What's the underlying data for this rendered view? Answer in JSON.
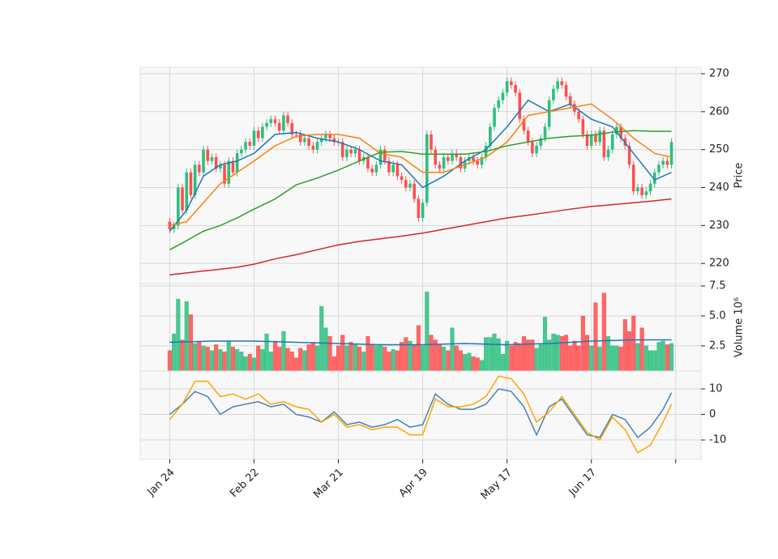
{
  "chart_data": [
    {
      "type": "candlestick",
      "ylabel": "Price",
      "xlim": [
        -7,
        126
      ],
      "ylim": [
        214.7,
        271.7
      ],
      "yticks": [
        220,
        230,
        240,
        250,
        260,
        270
      ],
      "grid": true,
      "xticks": [
        {
          "value": 0,
          "label": "Jan 24"
        },
        {
          "value": 20,
          "label": "Feb 22"
        },
        {
          "value": 40,
          "label": "Mar 21"
        },
        {
          "value": 60,
          "label": "Apr 19"
        },
        {
          "value": 80,
          "label": "May 17"
        },
        {
          "value": 100,
          "label": "Jun 17"
        },
        {
          "value": 120,
          "label": null
        }
      ],
      "up_color": "#2dbf7f",
      "down_color": "#ff4f4f",
      "open": [
        231,
        229,
        230,
        240,
        234,
        244,
        238,
        246,
        244,
        250,
        247,
        248,
        245,
        246,
        241,
        247,
        244,
        249,
        250,
        252,
        251,
        255,
        253,
        256,
        257,
        258,
        257,
        255,
        259,
        257,
        254,
        254,
        252,
        253,
        251,
        250,
        252,
        253,
        254,
        253,
        252,
        252,
        248,
        250,
        249,
        250,
        247,
        248,
        245,
        244,
        246,
        250,
        247,
        244,
        246,
        243,
        242,
        240,
        241,
        237,
        232,
        236,
        254,
        250,
        246,
        245,
        248,
        247,
        249,
        248,
        245,
        247,
        248,
        247,
        246,
        248,
        251,
        256,
        261,
        263,
        265,
        268,
        267,
        265,
        258,
        255,
        252,
        249,
        251,
        253,
        256,
        263,
        266,
        268,
        267,
        264,
        262,
        260,
        258,
        254,
        251,
        254,
        252,
        255,
        248,
        250,
        254,
        256,
        253,
        251,
        246,
        239,
        240,
        238,
        239,
        241,
        244,
        246,
        247,
        246
      ],
      "high": [
        232,
        231,
        241,
        241,
        245,
        245,
        247,
        247,
        251,
        251,
        249,
        249,
        247,
        247,
        248,
        248,
        250,
        251,
        253,
        253,
        256,
        256,
        257,
        258,
        259,
        259,
        258,
        260,
        260,
        258,
        255,
        255,
        254,
        254,
        252,
        253,
        254,
        255,
        255,
        254,
        253,
        253,
        251,
        251,
        251,
        251,
        249,
        249,
        246,
        247,
        251,
        251,
        248,
        247,
        247,
        244,
        243,
        242,
        242,
        238,
        237,
        255,
        255,
        251,
        247,
        249,
        249,
        250,
        250,
        249,
        248,
        249,
        249,
        248,
        249,
        252,
        257,
        262,
        264,
        266,
        269,
        269,
        268,
        266,
        259,
        256,
        253,
        252,
        254,
        257,
        264,
        267,
        269,
        269,
        268,
        265,
        263,
        261,
        259,
        255,
        255,
        255,
        256,
        256,
        251,
        255,
        257,
        257,
        254,
        252,
        247,
        241,
        241,
        240,
        242,
        245,
        247,
        248,
        248,
        253
      ],
      "low": [
        228,
        228,
        229,
        233,
        233,
        237,
        237,
        243,
        243,
        246,
        246,
        244,
        244,
        240,
        240,
        243,
        243,
        248,
        249,
        250,
        250,
        252,
        252,
        255,
        256,
        256,
        254,
        254,
        256,
        253,
        253,
        251,
        251,
        250,
        249,
        249,
        251,
        252,
        252,
        251,
        251,
        247,
        247,
        248,
        248,
        246,
        246,
        244,
        243,
        243,
        245,
        246,
        243,
        243,
        242,
        241,
        239,
        239,
        236,
        231,
        231,
        235,
        249,
        245,
        244,
        244,
        246,
        246,
        247,
        244,
        244,
        246,
        246,
        245,
        245,
        247,
        250,
        255,
        260,
        262,
        264,
        266,
        264,
        257,
        254,
        251,
        248,
        248,
        250,
        252,
        255,
        262,
        265,
        266,
        263,
        261,
        259,
        257,
        253,
        250,
        250,
        251,
        251,
        247,
        247,
        249,
        253,
        252,
        250,
        245,
        238,
        238,
        237,
        237,
        238,
        240,
        243,
        245,
        245,
        245
      ],
      "close": [
        229,
        230,
        240,
        234,
        244,
        238,
        246,
        244,
        250,
        247,
        248,
        245,
        246,
        241,
        247,
        244,
        249,
        250,
        252,
        251,
        255,
        253,
        256,
        257,
        258,
        257,
        255,
        259,
        257,
        254,
        254,
        252,
        253,
        251,
        250,
        252,
        253,
        254,
        253,
        252,
        252,
        248,
        250,
        249,
        250,
        247,
        248,
        245,
        244,
        246,
        250,
        247,
        244,
        246,
        243,
        242,
        240,
        241,
        237,
        232,
        236,
        254,
        250,
        246,
        245,
        248,
        247,
        249,
        248,
        245,
        247,
        248,
        247,
        246,
        248,
        251,
        256,
        261,
        263,
        265,
        268,
        267,
        265,
        258,
        255,
        252,
        249,
        251,
        253,
        256,
        263,
        266,
        268,
        267,
        264,
        262,
        260,
        258,
        254,
        251,
        254,
        252,
        255,
        248,
        250,
        254,
        256,
        253,
        251,
        246,
        239,
        240,
        238,
        239,
        241,
        244,
        246,
        247,
        246,
        252
      ],
      "series": [
        {
          "color": "#1f77b4",
          "x": [
            0,
            4,
            8,
            12,
            16,
            20,
            25,
            30,
            35,
            40,
            45,
            50,
            55,
            60,
            65,
            70,
            75,
            80,
            85,
            90,
            95,
            100,
            105,
            110,
            115,
            119
          ],
          "values": [
            228.5,
            234,
            243,
            246,
            247,
            249,
            254,
            254.5,
            253,
            252,
            250,
            247,
            246,
            240,
            243,
            247,
            250,
            256,
            263,
            260,
            262,
            258,
            256,
            249,
            242,
            244
          ]
        },
        {
          "color": "#ff7f0e",
          "x": [
            0,
            4,
            8,
            12,
            16,
            20,
            25,
            30,
            35,
            40,
            45,
            50,
            55,
            60,
            65,
            70,
            75,
            80,
            85,
            90,
            95,
            100,
            105,
            110,
            115,
            119
          ],
          "values": [
            230,
            231,
            236,
            241,
            244,
            247,
            251,
            253.5,
            254,
            254,
            253,
            249,
            248,
            244,
            244,
            246,
            248,
            252,
            259,
            260,
            261,
            262,
            258,
            253,
            249,
            248
          ]
        },
        {
          "color": "#2ca02c",
          "x": [
            0,
            4,
            8,
            12,
            16,
            20,
            25,
            30,
            35,
            40,
            45,
            50,
            55,
            60,
            65,
            70,
            75,
            80,
            85,
            90,
            95,
            100,
            105,
            110,
            115,
            119
          ],
          "values": [
            223.6,
            226,
            228.5,
            230,
            232,
            234.3,
            237,
            240.7,
            242.5,
            244.6,
            247,
            249.3,
            249.5,
            248.8,
            248.8,
            248.8,
            249.5,
            251,
            252,
            253,
            253.5,
            253.8,
            254.6,
            255,
            254.8,
            254.8
          ]
        },
        {
          "color": "#d62728",
          "x": [
            0,
            4,
            8,
            12,
            16,
            20,
            25,
            30,
            35,
            40,
            45,
            50,
            55,
            60,
            65,
            70,
            75,
            80,
            85,
            90,
            95,
            100,
            105,
            110,
            115,
            119
          ],
          "values": [
            217,
            217.5,
            218,
            218.5,
            219,
            219.8,
            221.2,
            222.3,
            223.6,
            224.9,
            225.8,
            226.5,
            227.2,
            228,
            229,
            230,
            231,
            232,
            232.7,
            233.5,
            234.3,
            235,
            235.5,
            236,
            236.5,
            237
          ]
        }
      ]
    },
    {
      "type": "bar",
      "ylabel": "Volume  10⁶",
      "ylim": [
        0.4,
        7.7
      ],
      "yticks": [
        2.5,
        {
          "value": 5,
          "label": "5.0"
        },
        7.5
      ],
      "values": [
        2.1,
        3.5,
        6.4,
        3.0,
        6.2,
        5.1,
        2.7,
        2.8,
        2.5,
        2.4,
        2.1,
        2.6,
        2.2,
        2.0,
        2.9,
        2.4,
        2.2,
        2.0,
        1.6,
        1.8,
        1.5,
        2.5,
        2.2,
        3.5,
        2.0,
        2.9,
        2.4,
        3.7,
        2.3,
        2.0,
        1.5,
        2.3,
        2.1,
        2.6,
        2.8,
        2.5,
        5.8,
        4.0,
        3.3,
        1.6,
        2.5,
        3.4,
        2.5,
        2.8,
        2.6,
        2.4,
        2.0,
        3.3,
        2.6,
        2.5,
        2.6,
        2.4,
        2.0,
        2.2,
        2.1,
        2.8,
        3.2,
        2.9,
        2.6,
        4.2,
        2.5,
        7.0,
        3.4,
        3.0,
        2.6,
        2.4,
        2.1,
        4.0,
        2.5,
        2.1,
        1.8,
        1.9,
        1.6,
        1.5,
        1.3,
        3.2,
        3.2,
        3.5,
        3.1,
        1.8,
        2.9,
        2.5,
        2.8,
        2.7,
        3.3,
        3.0,
        3.0,
        2.3,
        2.6,
        4.9,
        3.0,
        3.5,
        3.4,
        3.3,
        3.4,
        2.5,
        2.9,
        2.5,
        5.0,
        3.4,
        2.5,
        6.1,
        2.4,
        6.9,
        3.3,
        2.5,
        2.5,
        2.4,
        4.7,
        3.7,
        5.0,
        2.7,
        4.0,
        2.5,
        2.1,
        2.1,
        2.8,
        2.9,
        2.6,
        2.7
      ],
      "series": [
        {
          "color": "#1f77b4",
          "x": [
            0,
            10,
            20,
            30,
            40,
            50,
            60,
            70,
            80,
            90,
            100,
            110,
            119
          ],
          "values": [
            2.8,
            2.9,
            2.9,
            2.8,
            2.7,
            2.6,
            2.6,
            2.7,
            2.6,
            2.7,
            2.9,
            3.0,
            3.0
          ]
        }
      ]
    },
    {
      "type": "line",
      "ylim": [
        -17.6,
        17
      ],
      "yticks": [
        -10,
        0,
        10
      ],
      "series": [
        {
          "color": "#4682b4",
          "x": [
            0,
            3,
            6,
            9,
            12,
            15,
            18,
            21,
            24,
            27,
            30,
            33,
            36,
            39,
            42,
            45,
            48,
            51,
            54,
            57,
            60,
            63,
            66,
            69,
            72,
            75,
            78,
            81,
            84,
            87,
            90,
            93,
            96,
            99,
            102,
            105,
            108,
            111,
            114,
            117,
            119
          ],
          "values": [
            0,
            4,
            9,
            7,
            0,
            3,
            4,
            5,
            3,
            4,
            0,
            -1,
            -3,
            1,
            -4,
            -3,
            -5,
            -4,
            -2,
            -5,
            -4,
            8,
            4,
            2,
            2,
            4,
            10,
            9,
            3,
            -8,
            3,
            6,
            -1,
            -8,
            -9,
            0,
            -2,
            -9,
            -5,
            2,
            8.5
          ]
        },
        {
          "color": "#ffa500",
          "x": [
            0,
            3,
            6,
            9,
            12,
            15,
            18,
            21,
            24,
            27,
            30,
            33,
            36,
            39,
            42,
            45,
            48,
            51,
            54,
            57,
            60,
            63,
            66,
            69,
            72,
            75,
            78,
            81,
            84,
            87,
            90,
            93,
            96,
            99,
            102,
            105,
            108,
            111,
            114,
            117,
            119
          ],
          "values": [
            -2,
            4,
            13,
            13,
            7,
            8,
            6,
            8,
            4,
            5,
            3,
            2,
            -3,
            0,
            -5,
            -4,
            -6,
            -5,
            -5,
            -8,
            -8,
            6,
            3,
            3,
            4,
            7,
            15,
            14,
            8,
            -3,
            1,
            7,
            0,
            -7,
            -10,
            -1,
            -6,
            -15,
            -12,
            -3,
            4
          ]
        }
      ]
    }
  ]
}
